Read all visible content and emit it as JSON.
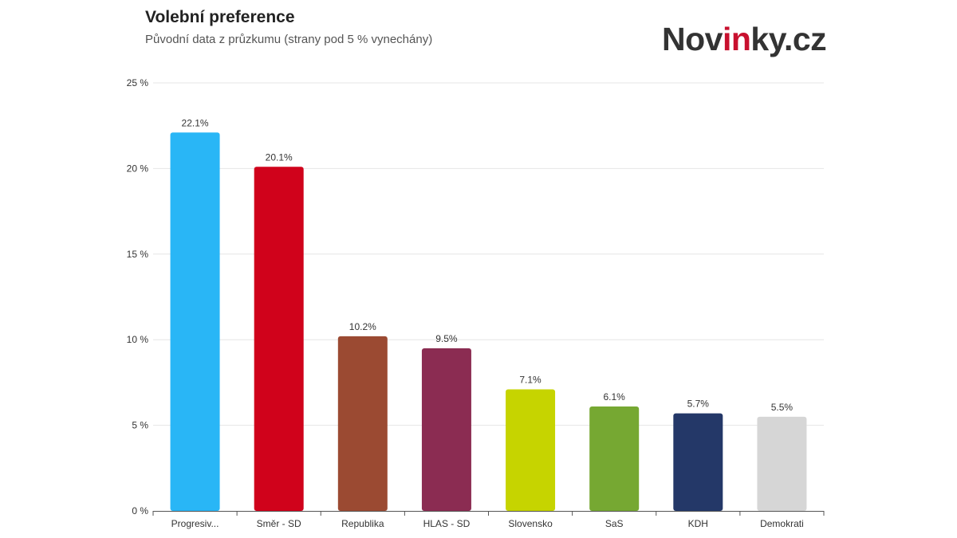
{
  "header": {
    "title": "Volební preference",
    "subtitle": "Původní data z průzkumu (strany pod 5 % vynechány)"
  },
  "logo": {
    "text_a": "Nov",
    "text_b": "in",
    "text_c": "ky.cz",
    "brand_color": "#c8102e"
  },
  "chart_data": {
    "type": "bar",
    "title": "Volební preference",
    "subtitle": "Původní data z průzkumu (strany pod 5 % vynechány)",
    "categories": [
      "Progresiv...",
      "Směr - SD",
      "Republika",
      "HLAS - SD",
      "Slovensko",
      "SaS",
      "KDH",
      "Demokrati"
    ],
    "values": [
      22.1,
      20.1,
      10.2,
      9.5,
      7.1,
      6.1,
      5.7,
      5.5
    ],
    "data_labels": [
      "22.1%",
      "20.1%",
      "10.2%",
      "9.5%",
      "7.1%",
      "6.1%",
      "5.7%",
      "5.5%"
    ],
    "colors": [
      "#29b6f6",
      "#d0021b",
      "#9b4a32",
      "#8b2c52",
      "#c6d400",
      "#76a832",
      "#243868",
      "#d6d6d6"
    ],
    "ylim": [
      0,
      25
    ],
    "yticks": [
      0,
      5,
      10,
      15,
      20,
      25
    ],
    "ytick_labels": [
      "0 %",
      "5 %",
      "10 %",
      "15 %",
      "20 %",
      "25 %"
    ],
    "grid": true,
    "xlabel": "",
    "ylabel": ""
  }
}
